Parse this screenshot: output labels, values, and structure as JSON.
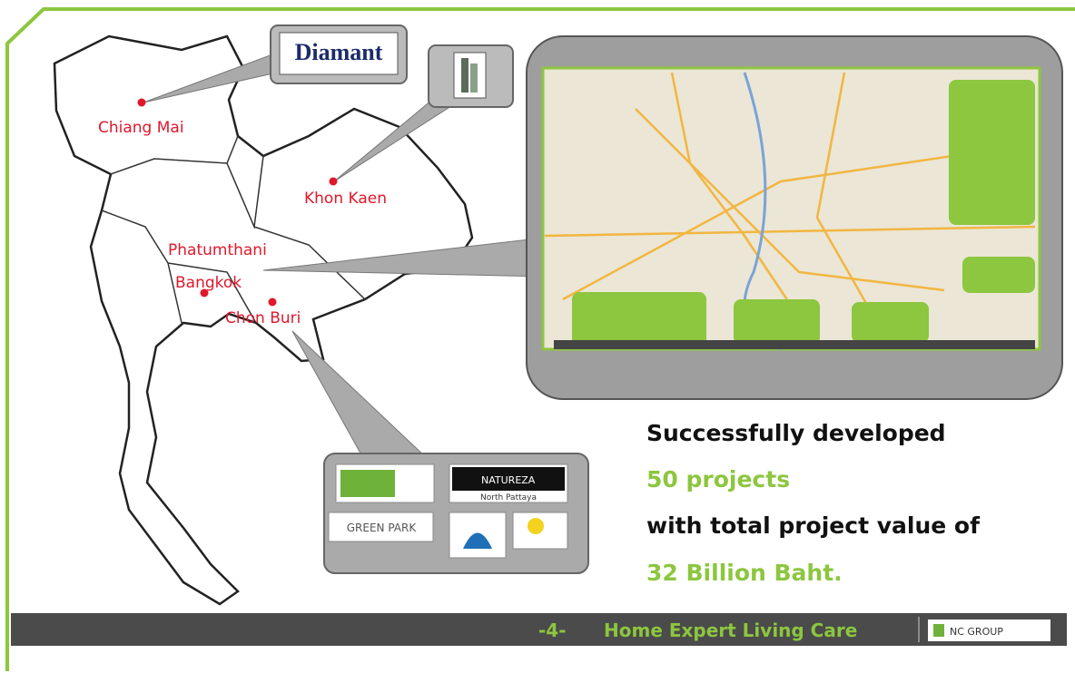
{
  "cities": [
    {
      "name": "Chiang Mai"
    },
    {
      "name": "Khon Kaen"
    },
    {
      "name": "Phatumthani"
    },
    {
      "name": "Bangkok"
    },
    {
      "name": "Chon Buri"
    }
  ],
  "logos": {
    "diamant": "Diamant",
    "natureza": "NATUREZA",
    "natureza_sub": "North Pattaya",
    "green_park": "GREEN PARK"
  },
  "summary": {
    "line1": "Successfully developed",
    "line2": "50 projects",
    "line3": "with total project value of",
    "line4": "32 Billion Baht."
  },
  "footer": {
    "page": "-4-",
    "tagline": "Home Expert Living Care",
    "brand": "NC GROUP"
  }
}
